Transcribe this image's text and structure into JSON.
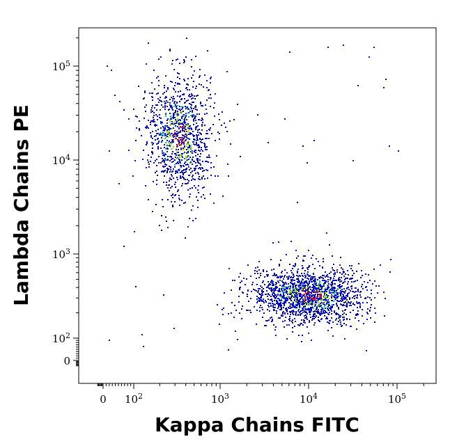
{
  "chart_data": {
    "type": "scatter",
    "title": "",
    "xlabel": "Kappa Chains FITC",
    "ylabel": "Lambda Chains PE",
    "xscale": "biexponential",
    "yscale": "biexponential",
    "xlim": [
      -60,
      250000
    ],
    "ylim": [
      -60,
      250000
    ],
    "x_ticks": [
      {
        "value": 0,
        "base": "0",
        "exp": ""
      },
      {
        "value": 100,
        "base": "10",
        "exp": "2"
      },
      {
        "value": 1000,
        "base": "10",
        "exp": "3"
      },
      {
        "value": 10000,
        "base": "10",
        "exp": "4"
      },
      {
        "value": 100000,
        "base": "10",
        "exp": "5"
      }
    ],
    "y_ticks": [
      {
        "value": 0,
        "base": "0",
        "exp": ""
      },
      {
        "value": 100,
        "base": "10",
        "exp": "2"
      },
      {
        "value": 1000,
        "base": "10",
        "exp": "3"
      },
      {
        "value": 10000,
        "base": "10",
        "exp": "4"
      },
      {
        "value": 100000,
        "base": "10",
        "exp": "5"
      }
    ],
    "grid": false,
    "legend": "none",
    "density_colors": [
      "#0000b0",
      "#0010e0",
      "#00c0a0",
      "#90e000",
      "#e00000"
    ],
    "populations": [
      {
        "label": "lambda",
        "x_center": 330,
        "y_center": 18000,
        "x_spread_log": 0.2,
        "y_spread_log": 0.33,
        "events": 1100
      },
      {
        "label": "kappa",
        "x_center": 10000,
        "y_center": 330,
        "x_spread_log": 0.32,
        "y_spread_log": 0.17,
        "events": 1700
      }
    ]
  }
}
